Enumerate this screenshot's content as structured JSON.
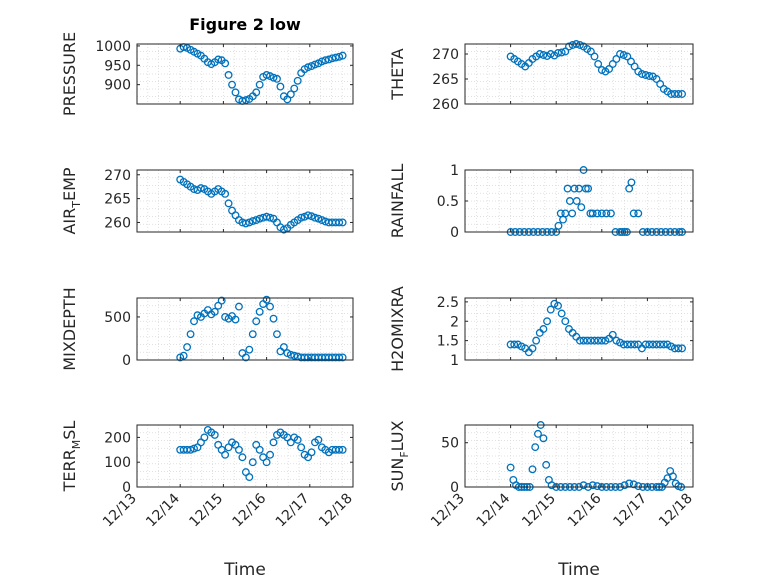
{
  "chart_data": [
    {
      "type": "scatter",
      "title": "Figure 2 low",
      "ylabel": "PRESSURE",
      "xlim": [
        0,
        5
      ],
      "ylim": [
        850,
        1005
      ],
      "yticks": [
        900,
        950,
        1000
      ],
      "yticklabels": [
        "900",
        "950",
        "1000"
      ],
      "xticklabels": [],
      "grid": "minor",
      "color": "#0072BD",
      "x": [
        1.0,
        1.08,
        1.16,
        1.24,
        1.32,
        1.4,
        1.48,
        1.56,
        1.64,
        1.72,
        1.8,
        1.88,
        1.96,
        2.04,
        2.12,
        2.2,
        2.28,
        2.36,
        2.44,
        2.52,
        2.6,
        2.68,
        2.76,
        2.84,
        2.92,
        3.0,
        3.08,
        3.16,
        3.24,
        3.32,
        3.4,
        3.48,
        3.56,
        3.64,
        3.72,
        3.8,
        3.88,
        3.96,
        4.04,
        4.12,
        4.2,
        4.28,
        4.36,
        4.44,
        4.52,
        4.6,
        4.68,
        4.76
      ],
      "y": [
        993,
        997,
        995,
        990,
        985,
        980,
        975,
        967,
        958,
        953,
        958,
        965,
        963,
        955,
        925,
        900,
        880,
        862,
        858,
        860,
        863,
        870,
        880,
        900,
        920,
        925,
        922,
        918,
        915,
        895,
        870,
        862,
        875,
        890,
        910,
        930,
        940,
        945,
        948,
        952,
        955,
        960,
        963,
        965,
        968,
        970,
        972,
        975
      ]
    },
    {
      "type": "scatter",
      "ylabel": "THETA",
      "xlim": [
        0,
        5
      ],
      "ylim": [
        260,
        272
      ],
      "yticks": [
        260,
        265,
        270
      ],
      "yticklabels": [
        "260",
        "265",
        "270"
      ],
      "xticklabels": [],
      "grid": "minor",
      "color": "#0072BD",
      "x": [
        1.0,
        1.08,
        1.16,
        1.24,
        1.32,
        1.4,
        1.48,
        1.56,
        1.64,
        1.72,
        1.8,
        1.88,
        1.96,
        2.04,
        2.12,
        2.2,
        2.28,
        2.36,
        2.44,
        2.52,
        2.6,
        2.68,
        2.76,
        2.84,
        2.92,
        3.0,
        3.08,
        3.16,
        3.24,
        3.32,
        3.4,
        3.48,
        3.56,
        3.64,
        3.72,
        3.8,
        3.88,
        3.96,
        4.04,
        4.12,
        4.2,
        4.28,
        4.36,
        4.44,
        4.52,
        4.6,
        4.68,
        4.76
      ],
      "y": [
        269.5,
        269.0,
        268.5,
        268.0,
        267.5,
        268.2,
        269.0,
        269.5,
        270.0,
        269.8,
        269.6,
        270.0,
        269.7,
        270.2,
        270.3,
        270.5,
        271.5,
        271.8,
        272.0,
        271.8,
        271.5,
        271.0,
        270.5,
        269.5,
        268.0,
        266.8,
        266.5,
        267.0,
        268.0,
        269.0,
        270.0,
        269.8,
        269.5,
        268.5,
        267.5,
        266.5,
        266.0,
        265.8,
        265.6,
        265.5,
        265.0,
        264.0,
        263.0,
        262.5,
        262.0,
        262.0,
        262.0,
        262.0
      ]
    },
    {
      "type": "scatter",
      "ylabel": "AIR_TEMP",
      "xlim": [
        0,
        5
      ],
      "ylim": [
        258,
        271
      ],
      "yticks": [
        260,
        265,
        270
      ],
      "yticklabels": [
        "260",
        "265",
        "270"
      ],
      "xticklabels": [],
      "grid": "minor",
      "color": "#0072BD",
      "x": [
        1.0,
        1.08,
        1.16,
        1.24,
        1.32,
        1.4,
        1.48,
        1.56,
        1.64,
        1.72,
        1.8,
        1.88,
        1.96,
        2.04,
        2.12,
        2.2,
        2.28,
        2.36,
        2.44,
        2.52,
        2.6,
        2.68,
        2.76,
        2.84,
        2.92,
        3.0,
        3.08,
        3.16,
        3.24,
        3.32,
        3.4,
        3.48,
        3.56,
        3.64,
        3.72,
        3.8,
        3.88,
        3.96,
        4.04,
        4.12,
        4.2,
        4.28,
        4.36,
        4.44,
        4.52,
        4.6,
        4.68,
        4.76
      ],
      "y": [
        269.0,
        268.5,
        268.0,
        267.5,
        267.0,
        266.8,
        267.2,
        267.0,
        266.5,
        266.0,
        266.5,
        267.0,
        266.5,
        266.0,
        264.0,
        262.5,
        261.5,
        260.5,
        260.0,
        259.8,
        260.0,
        260.3,
        260.5,
        260.8,
        261.0,
        261.2,
        261.0,
        260.8,
        260.0,
        259.0,
        258.5,
        258.8,
        259.5,
        260.0,
        260.5,
        261.0,
        261.2,
        261.5,
        261.3,
        261.0,
        260.8,
        260.5,
        260.2,
        260.0,
        260.0,
        260.0,
        260.0,
        260.0
      ]
    },
    {
      "type": "scatter",
      "ylabel": "RAINFALL",
      "xlim": [
        0,
        5
      ],
      "ylim": [
        0,
        1
      ],
      "yticks": [
        0,
        0.5,
        1
      ],
      "yticklabels": [
        "0",
        "0.5",
        "1"
      ],
      "xticklabels": [],
      "grid": "minor",
      "color": "#0072BD",
      "x": [
        1.0,
        1.1,
        1.2,
        1.3,
        1.4,
        1.5,
        1.6,
        1.7,
        1.8,
        1.9,
        2.0,
        2.05,
        2.1,
        2.15,
        2.2,
        2.25,
        2.3,
        2.35,
        2.4,
        2.45,
        2.5,
        2.55,
        2.6,
        2.65,
        2.7,
        2.75,
        2.8,
        2.9,
        3.0,
        3.1,
        3.2,
        3.3,
        3.4,
        3.45,
        3.5,
        3.55,
        3.6,
        3.65,
        3.7,
        3.8,
        3.9,
        4.0,
        4.1,
        4.2,
        4.3,
        4.4,
        4.5,
        4.6,
        4.7,
        4.76
      ],
      "y": [
        0,
        0,
        0,
        0,
        0,
        0,
        0,
        0,
        0,
        0,
        0,
        0.1,
        0.3,
        0.2,
        0.3,
        0.7,
        0.5,
        0.3,
        0.7,
        0.5,
        0.7,
        0.4,
        1.0,
        0.7,
        0.7,
        0.3,
        0.3,
        0.3,
        0.3,
        0.3,
        0.3,
        0.0,
        0.0,
        0.0,
        0.0,
        0.0,
        0.7,
        0.8,
        0.3,
        0.3,
        0.0,
        0.0,
        0.0,
        0.0,
        0.0,
        0.0,
        0.0,
        0.0,
        0.0,
        0.0
      ]
    },
    {
      "type": "scatter",
      "ylabel": "MIXDEPTH",
      "xlim": [
        0,
        5
      ],
      "ylim": [
        0,
        720
      ],
      "yticks": [
        0,
        500
      ],
      "yticklabels": [
        "0",
        "500"
      ],
      "xticklabels": [],
      "grid": "minor",
      "color": "#0072BD",
      "x": [
        1.0,
        1.08,
        1.16,
        1.24,
        1.32,
        1.4,
        1.48,
        1.56,
        1.64,
        1.72,
        1.8,
        1.88,
        1.96,
        2.04,
        2.12,
        2.2,
        2.28,
        2.36,
        2.44,
        2.52,
        2.6,
        2.68,
        2.76,
        2.84,
        2.92,
        3.0,
        3.08,
        3.16,
        3.24,
        3.32,
        3.4,
        3.48,
        3.56,
        3.64,
        3.72,
        3.8,
        3.88,
        3.96,
        4.04,
        4.12,
        4.2,
        4.28,
        4.36,
        4.44,
        4.52,
        4.6,
        4.68,
        4.76
      ],
      "y": [
        30,
        50,
        150,
        300,
        450,
        520,
        500,
        540,
        580,
        530,
        560,
        630,
        690,
        500,
        480,
        510,
        470,
        620,
        80,
        30,
        120,
        300,
        450,
        560,
        650,
        700,
        620,
        480,
        300,
        100,
        150,
        80,
        60,
        50,
        40,
        30,
        30,
        30,
        30,
        30,
        30,
        30,
        30,
        30,
        30,
        30,
        30,
        30
      ]
    },
    {
      "type": "scatter",
      "ylabel": "H2OMIXRA",
      "xlim": [
        0,
        5
      ],
      "ylim": [
        1,
        2.6
      ],
      "yticks": [
        1,
        1.5,
        2,
        2.5
      ],
      "yticklabels": [
        "1",
        "1.5",
        "2",
        "2.5"
      ],
      "xticklabels": [],
      "grid": "minor",
      "color": "#0072BD",
      "x": [
        1.0,
        1.08,
        1.16,
        1.24,
        1.32,
        1.4,
        1.48,
        1.56,
        1.64,
        1.72,
        1.8,
        1.88,
        1.96,
        2.04,
        2.12,
        2.2,
        2.28,
        2.36,
        2.44,
        2.52,
        2.6,
        2.68,
        2.76,
        2.84,
        2.92,
        3.0,
        3.08,
        3.16,
        3.24,
        3.32,
        3.4,
        3.48,
        3.56,
        3.64,
        3.72,
        3.8,
        3.88,
        3.96,
        4.04,
        4.12,
        4.2,
        4.28,
        4.36,
        4.44,
        4.52,
        4.6,
        4.68,
        4.76
      ],
      "y": [
        1.4,
        1.4,
        1.4,
        1.35,
        1.3,
        1.2,
        1.3,
        1.5,
        1.7,
        1.8,
        2.0,
        2.3,
        2.45,
        2.4,
        2.2,
        2.0,
        1.8,
        1.7,
        1.6,
        1.5,
        1.5,
        1.5,
        1.5,
        1.5,
        1.5,
        1.5,
        1.5,
        1.55,
        1.65,
        1.5,
        1.45,
        1.4,
        1.4,
        1.4,
        1.4,
        1.4,
        1.3,
        1.4,
        1.4,
        1.4,
        1.4,
        1.4,
        1.4,
        1.4,
        1.35,
        1.3,
        1.3,
        1.3
      ]
    },
    {
      "type": "scatter",
      "ylabel": "TERR_MSL",
      "xlabel": "Time",
      "xlim": [
        0,
        5
      ],
      "ylim": [
        0,
        250
      ],
      "yticks": [
        0,
        100,
        200
      ],
      "yticklabels": [
        "0",
        "100",
        "200"
      ],
      "xticklabels": [
        "12/13",
        "12/14",
        "12/15",
        "12/16",
        "12/17",
        "12/18"
      ],
      "grid": "minor",
      "color": "#0072BD",
      "x": [
        1.0,
        1.08,
        1.16,
        1.24,
        1.32,
        1.4,
        1.48,
        1.56,
        1.64,
        1.72,
        1.8,
        1.88,
        1.96,
        2.04,
        2.12,
        2.2,
        2.28,
        2.36,
        2.44,
        2.52,
        2.6,
        2.68,
        2.76,
        2.84,
        2.92,
        3.0,
        3.08,
        3.16,
        3.24,
        3.32,
        3.4,
        3.48,
        3.56,
        3.64,
        3.72,
        3.8,
        3.88,
        3.96,
        4.04,
        4.12,
        4.2,
        4.28,
        4.36,
        4.44,
        4.52,
        4.6,
        4.68,
        4.76
      ],
      "y": [
        150,
        150,
        150,
        150,
        155,
        160,
        180,
        200,
        230,
        220,
        210,
        170,
        150,
        130,
        160,
        180,
        170,
        150,
        120,
        60,
        40,
        100,
        170,
        150,
        120,
        100,
        130,
        180,
        210,
        220,
        210,
        200,
        180,
        200,
        190,
        160,
        130,
        120,
        140,
        180,
        190,
        160,
        150,
        140,
        150,
        150,
        150,
        150
      ]
    },
    {
      "type": "scatter",
      "ylabel": "SUN_FLUX",
      "xlabel": "Time",
      "xlim": [
        0,
        5
      ],
      "ylim": [
        0,
        70
      ],
      "yticks": [
        0,
        50
      ],
      "yticklabels": [
        "0",
        "50"
      ],
      "xticklabels": [
        "12/13",
        "12/14",
        "12/15",
        "12/16",
        "12/17",
        "12/18"
      ],
      "grid": "minor",
      "color": "#0072BD",
      "x": [
        1.0,
        1.06,
        1.12,
        1.18,
        1.24,
        1.3,
        1.36,
        1.42,
        1.48,
        1.54,
        1.6,
        1.66,
        1.72,
        1.78,
        1.84,
        1.9,
        2.0,
        2.1,
        2.2,
        2.3,
        2.4,
        2.5,
        2.6,
        2.7,
        2.8,
        2.9,
        3.0,
        3.1,
        3.2,
        3.3,
        3.4,
        3.5,
        3.6,
        3.7,
        3.8,
        3.9,
        4.0,
        4.1,
        4.2,
        4.26,
        4.32,
        4.38,
        4.44,
        4.5,
        4.56,
        4.62,
        4.68,
        4.74
      ],
      "y": [
        22,
        8,
        2,
        0,
        0,
        0,
        0,
        0,
        20,
        45,
        60,
        70,
        55,
        25,
        8,
        2,
        0,
        0,
        0,
        0,
        0,
        0,
        2,
        0,
        2,
        1,
        0,
        0,
        0,
        0,
        0,
        2,
        4,
        3,
        1,
        0,
        0,
        0,
        0,
        0,
        0,
        5,
        10,
        18,
        12,
        4,
        1,
        0
      ]
    }
  ]
}
